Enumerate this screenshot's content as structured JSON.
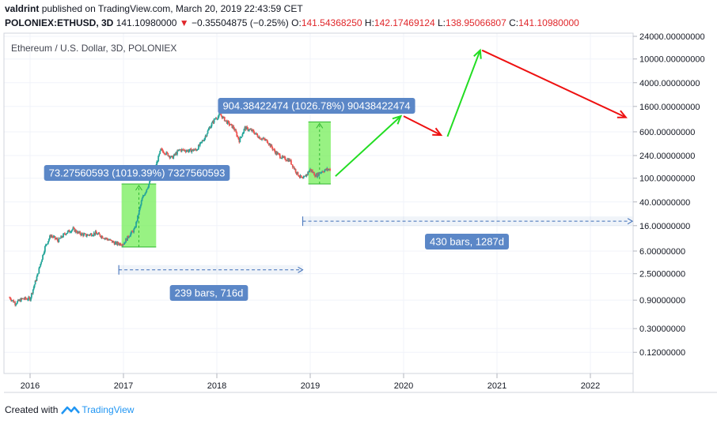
{
  "header": {
    "user": "valdrint",
    "published_text": "published on TradingView.com, March 20, 2019 22:43:59 CET",
    "symbol": "POLONIEX:ETHUSD, 3D",
    "last": "141.10980000",
    "change": "−0.35504875 (−0.25%)",
    "o_label": "O:",
    "o_value": "141.54368250",
    "h_label": "H:",
    "h_value": "142.17469124",
    "l_label": "L:",
    "l_value": "138.95066807",
    "c_label": "C:",
    "c_value": "141.10980000"
  },
  "footer": {
    "created_with": "Created with",
    "brand": "TradingView"
  },
  "colors": {
    "up": "#26a69a",
    "down": "#ef5350",
    "range_box": "#76ee5a",
    "arrow_up": "#22dd22",
    "arrow_down": "#ee1111",
    "label_bg": "#5b87c7",
    "measure": "#3c6db8"
  },
  "chart_data": {
    "type": "candlestick",
    "title": "Ethereum / U.S. Dollar, 3D, POLONIEX",
    "y_scale": "log",
    "y_ticks": [
      24000,
      10000,
      4000,
      1600,
      600,
      240,
      100,
      40,
      16,
      6,
      2.5,
      0.9,
      0.3,
      0.12
    ],
    "y_tick_labels": [
      "24000.00000000",
      "10000.00000000",
      "4000.00000000",
      "1600.00000000",
      "600.00000000",
      "240.00000000",
      "100.00000000",
      "40.00000000",
      "16.00000000",
      "6.00000000",
      "2.50000000",
      "0.90000000",
      "0.30000000",
      "0.12000000"
    ],
    "x_ticks": [
      "2016",
      "2017",
      "2018",
      "2019",
      "2020",
      "2021",
      "2022"
    ],
    "x_tick_values": [
      2016.0,
      2017.0,
      2018.0,
      2019.0,
      2020.0,
      2021.0,
      2022.0
    ],
    "price_path": [
      [
        2015.78,
        1.0
      ],
      [
        2015.84,
        0.8
      ],
      [
        2015.92,
        0.95
      ],
      [
        2016.0,
        0.95
      ],
      [
        2016.08,
        2.4
      ],
      [
        2016.16,
        7.0
      ],
      [
        2016.22,
        11.0
      ],
      [
        2016.3,
        9.0
      ],
      [
        2016.38,
        12.0
      ],
      [
        2016.46,
        14.0
      ],
      [
        2016.52,
        12.0
      ],
      [
        2016.6,
        11.0
      ],
      [
        2016.7,
        12.0
      ],
      [
        2016.8,
        10.0
      ],
      [
        2016.92,
        8.0
      ],
      [
        2017.0,
        8.0
      ],
      [
        2017.06,
        11.0
      ],
      [
        2017.12,
        14.0
      ],
      [
        2017.2,
        45.0
      ],
      [
        2017.28,
        85.0
      ],
      [
        2017.34,
        150.0
      ],
      [
        2017.4,
        300.0
      ],
      [
        2017.46,
        260.0
      ],
      [
        2017.52,
        220.0
      ],
      [
        2017.6,
        300.0
      ],
      [
        2017.7,
        290.0
      ],
      [
        2017.78,
        300.0
      ],
      [
        2017.86,
        450.0
      ],
      [
        2017.92,
        700.0
      ],
      [
        2017.98,
        1000.0
      ],
      [
        2018.04,
        1150.0
      ],
      [
        2018.1,
        900.0
      ],
      [
        2018.18,
        700.0
      ],
      [
        2018.24,
        430.0
      ],
      [
        2018.3,
        700.0
      ],
      [
        2018.38,
        620.0
      ],
      [
        2018.46,
        480.0
      ],
      [
        2018.54,
        420.0
      ],
      [
        2018.62,
        280.0
      ],
      [
        2018.7,
        220.0
      ],
      [
        2018.78,
        200.0
      ],
      [
        2018.86,
        120.0
      ],
      [
        2018.92,
        95.0
      ],
      [
        2019.0,
        140.0
      ],
      [
        2019.06,
        110.0
      ],
      [
        2019.12,
        130.0
      ],
      [
        2019.18,
        140.0
      ],
      [
        2019.22,
        141.1
      ]
    ],
    "annotations": [
      {
        "type": "price_range",
        "x0": 2016.98,
        "x1": 2017.35,
        "y0": 7.0,
        "y1": 80.0,
        "label": "73.27560593 (1019.39%) 7327560593"
      },
      {
        "type": "price_range",
        "x0": 2018.98,
        "x1": 2019.22,
        "y0": 80.0,
        "y1": 880.0,
        "label": "904.38422474 (1026.78%) 90438422474"
      },
      {
        "type": "date_range",
        "x0": 2016.95,
        "x1": 2018.92,
        "y": 2.9,
        "label": "239 bars, 716d"
      },
      {
        "type": "date_range",
        "x0": 2018.92,
        "x1": 2022.45,
        "y": 19.0,
        "label": "430 bars, 1287d"
      }
    ],
    "projection_arrows": [
      {
        "from": [
          2019.27,
          108.0
        ],
        "to": [
          2019.97,
          1100.0
        ],
        "color": "up"
      },
      {
        "from": [
          2020.0,
          1100.0
        ],
        "to": [
          2020.4,
          530.0
        ],
        "color": "down"
      },
      {
        "from": [
          2020.47,
          500.0
        ],
        "to": [
          2020.82,
          14000.0
        ],
        "color": "up"
      },
      {
        "from": [
          2020.84,
          14000.0
        ],
        "to": [
          2022.38,
          1050.0
        ],
        "color": "down"
      }
    ]
  }
}
